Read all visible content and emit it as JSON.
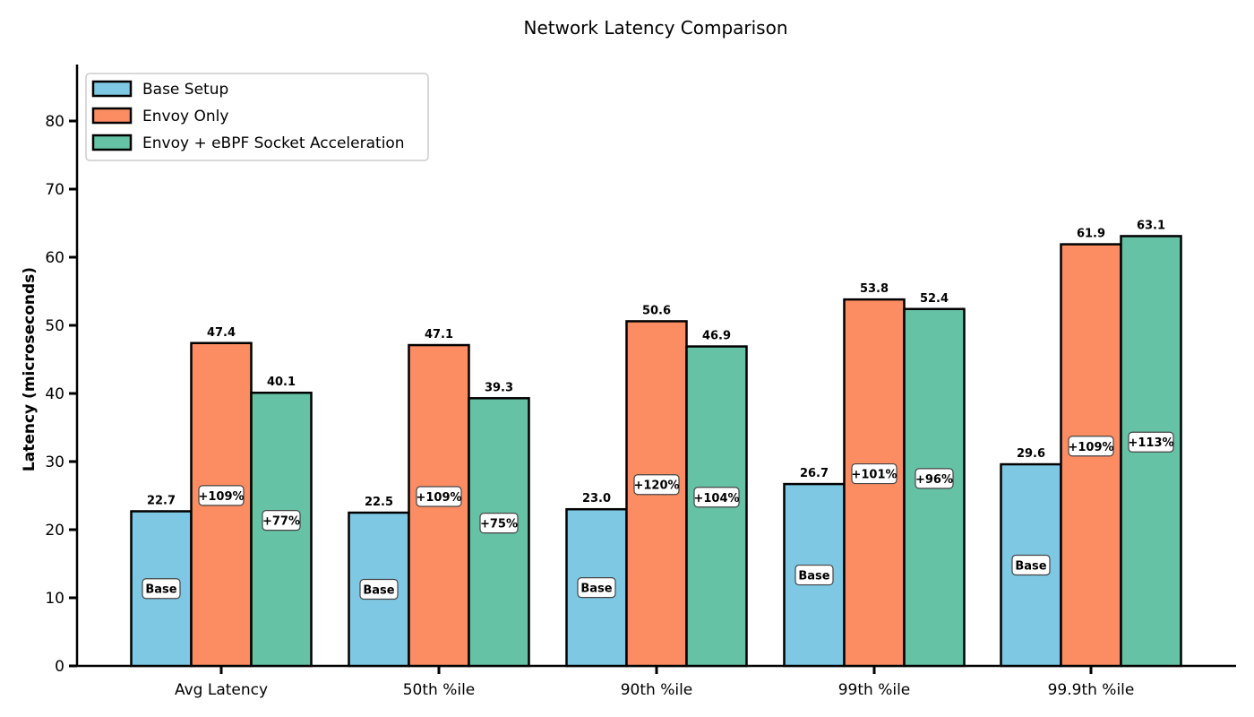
{
  "chart_data": {
    "type": "bar",
    "title": "Network Latency Comparison",
    "xlabel": "",
    "ylabel": "Latency (microseconds)",
    "ylim": [
      0,
      88
    ],
    "yticks": [
      0,
      10,
      20,
      30,
      40,
      50,
      60,
      70,
      80
    ],
    "grid": false,
    "legend_position": "upper left",
    "categories": [
      "Avg Latency",
      "50th %ile",
      "90th %ile",
      "99th %ile",
      "99.9th %ile"
    ],
    "series": [
      {
        "name": "Base Setup",
        "color": "#7ec8e3",
        "values": [
          22.7,
          22.5,
          23.0,
          26.7,
          29.6
        ],
        "annotations": [
          "Base",
          "Base",
          "Base",
          "Base",
          "Base"
        ]
      },
      {
        "name": "Envoy Only",
        "color": "#fc8d62",
        "values": [
          47.4,
          47.1,
          50.6,
          53.8,
          61.9
        ],
        "annotations": [
          "+109%",
          "+109%",
          "+120%",
          "+101%",
          "+109%"
        ]
      },
      {
        "name": "Envoy + eBPF Socket Acceleration",
        "color": "#66c2a5",
        "values": [
          40.1,
          39.3,
          46.9,
          52.4,
          63.1
        ],
        "annotations": [
          "+77%",
          "+75%",
          "+104%",
          "+96%",
          "+113%"
        ]
      }
    ]
  }
}
